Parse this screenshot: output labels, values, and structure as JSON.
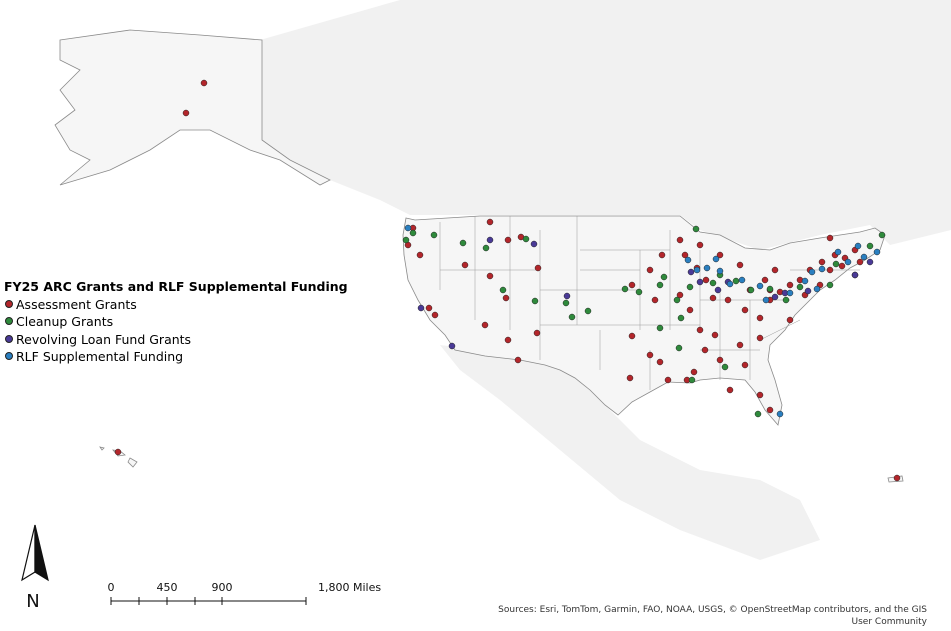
{
  "legend": {
    "title": "FY25 ARC Grants and RLF Supplemental Funding",
    "items": [
      {
        "label": "Assessment Grants",
        "color": "#b3262b"
      },
      {
        "label": "Cleanup Grants",
        "color": "#2f8a3c"
      },
      {
        "label": "Revolving Loan Fund Grants",
        "color": "#4a3a97"
      },
      {
        "label": "RLF Supplemental Funding",
        "color": "#2a7fc0"
      }
    ]
  },
  "north_arrow": "N",
  "scale_bar": {
    "labels": [
      "0",
      "450",
      "900",
      "1,800 Miles"
    ]
  },
  "sources": "Sources: Esri, TomTom, Garmin, FAO, NOAA, USGS, © OpenStreetMap contributors, and the GIS User Community"
}
